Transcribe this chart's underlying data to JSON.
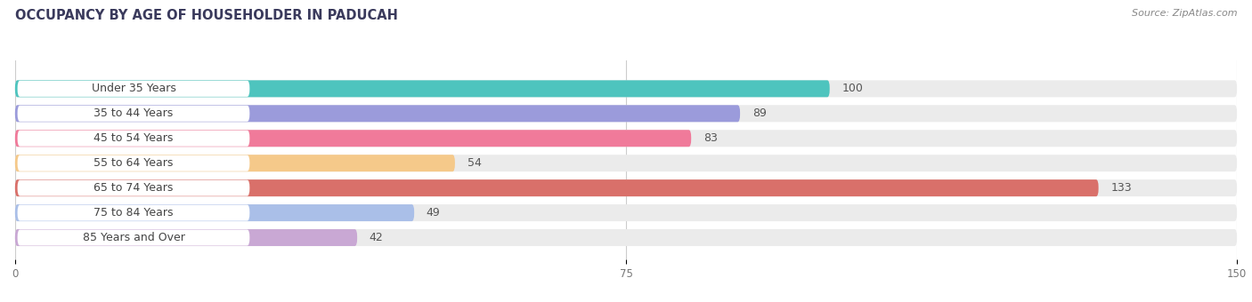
{
  "title": "OCCUPANCY BY AGE OF HOUSEHOLDER IN PADUCAH",
  "source": "Source: ZipAtlas.com",
  "categories": [
    "Under 35 Years",
    "35 to 44 Years",
    "45 to 54 Years",
    "55 to 64 Years",
    "65 to 74 Years",
    "75 to 84 Years",
    "85 Years and Over"
  ],
  "values": [
    100,
    89,
    83,
    54,
    133,
    49,
    42
  ],
  "bar_colors": [
    "#4ec4be",
    "#9b9bdb",
    "#f07a9a",
    "#f5c98a",
    "#d9706a",
    "#aabfe8",
    "#c9a8d4"
  ],
  "xlim": [
    0,
    150
  ],
  "xticks": [
    0,
    75,
    150
  ],
  "background_color": "#ffffff",
  "bar_background_color": "#ebebeb",
  "title_fontsize": 10.5,
  "label_fontsize": 9,
  "value_fontsize": 9,
  "source_fontsize": 8,
  "title_color": "#3a3a5c",
  "label_text_color": "#444444",
  "value_text_color": "#555555"
}
